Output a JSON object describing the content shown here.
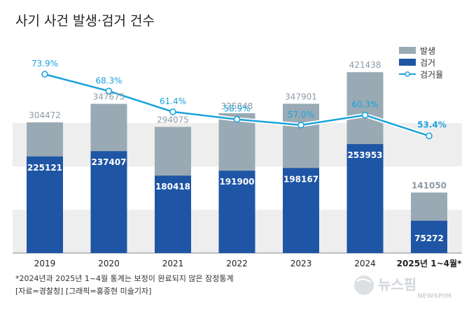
{
  "title": "사기 사건 발생·검거 건수",
  "chart_data": {
    "type": "bar",
    "categories": [
      "2019",
      "2020",
      "2021",
      "2022",
      "2023",
      "2024",
      "2025년 1~4월*"
    ],
    "series": [
      {
        "name": "발생",
        "type": "bar",
        "color": "#9aaab5",
        "values": [
          304472,
          347675,
          294075,
          325848,
          347901,
          421438,
          141050
        ]
      },
      {
        "name": "검거",
        "type": "bar",
        "color": "#1f55a5",
        "values": [
          225121,
          237407,
          180418,
          191900,
          198167,
          253953,
          75272
        ]
      },
      {
        "name": "검거율",
        "type": "line",
        "color": "#1aa3dc",
        "values": [
          73.9,
          68.3,
          61.4,
          58.9,
          57.0,
          60.3,
          53.4
        ]
      }
    ],
    "value_labels": {
      "발생": [
        "304472",
        "347675",
        "294075",
        "325848",
        "347901",
        "421438",
        "141050"
      ],
      "검거": [
        "225121",
        "237407",
        "180418",
        "191900",
        "198167",
        "253953",
        "75272"
      ],
      "검거율": [
        "73.9%",
        "68.3%",
        "61.4%",
        "58.9%",
        "57.0%",
        "60.3%",
        "53.4%"
      ]
    },
    "legend_position": "top-right",
    "grid": "horizontal bands",
    "bar_ylim": [
      0,
      600000
    ],
    "rate_ylim": [
      40,
      80
    ]
  },
  "notes": [
    "*2024년과 2025년 1~4월 통계는 보정이 완료되지 않은 잠정통계",
    "[자료=경찰청]  [그래픽=홍종현 미술기자]"
  ],
  "watermark": "뉴스핌 NEWSPIM"
}
